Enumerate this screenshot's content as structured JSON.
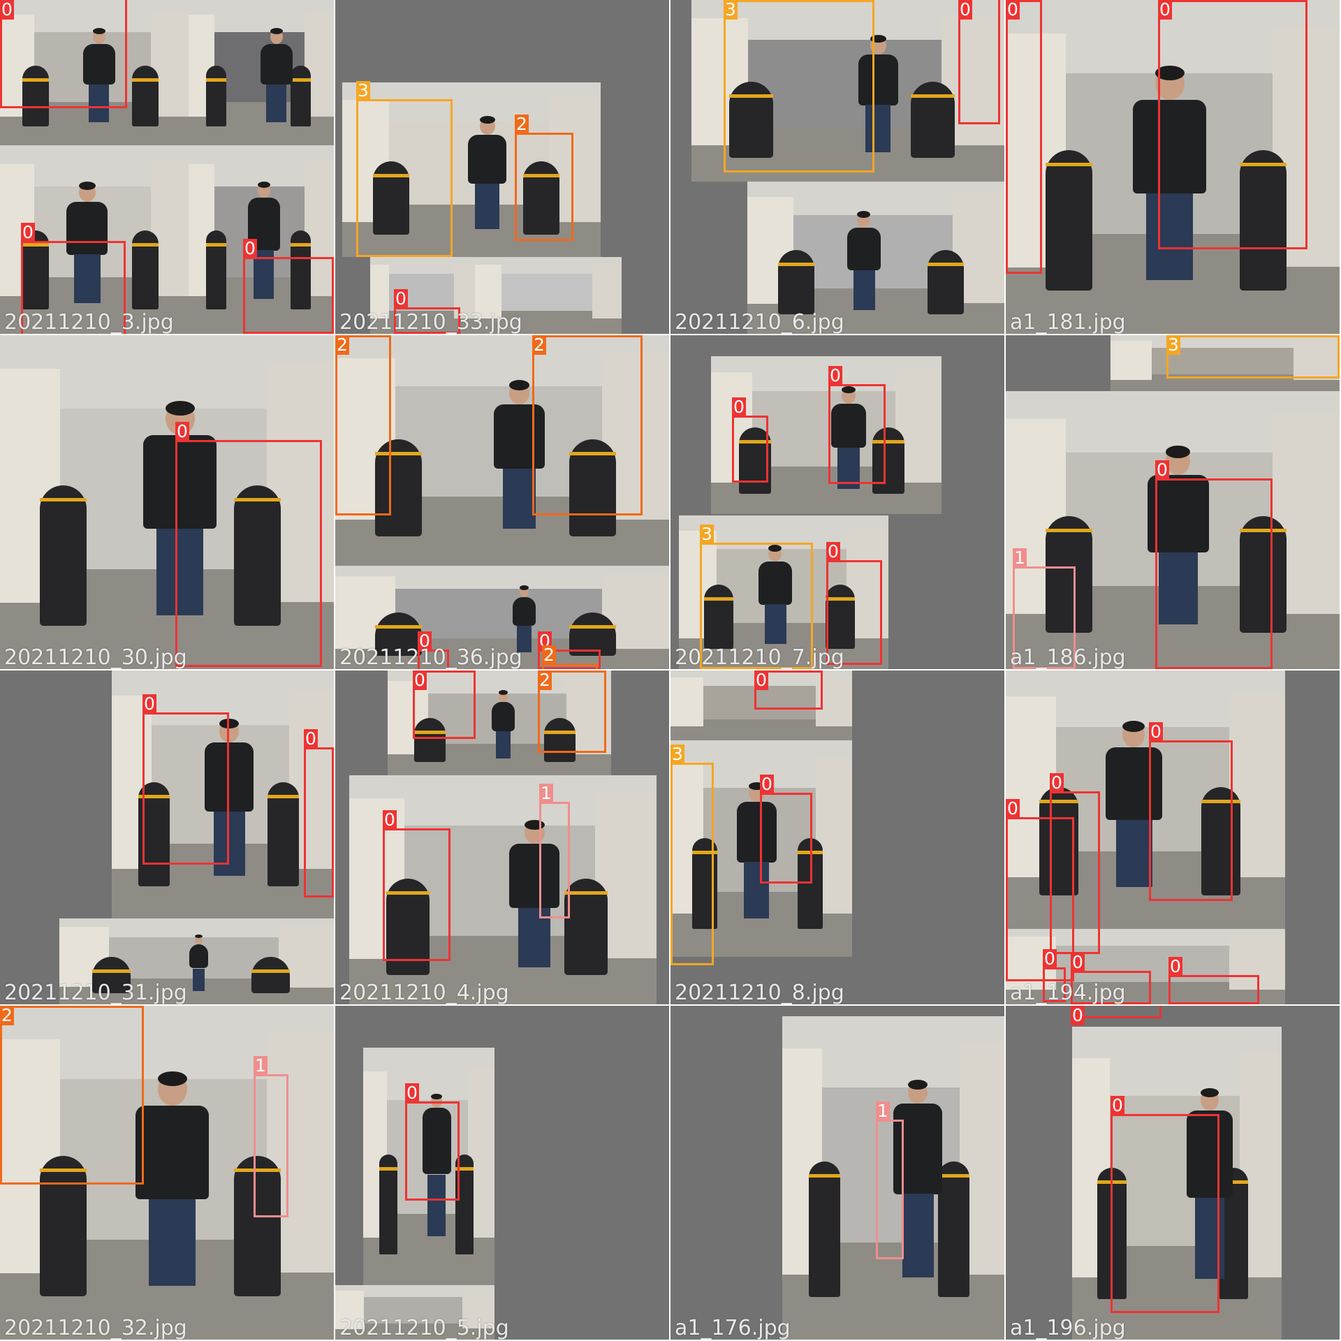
{
  "class_colors": {
    "0": "#ee3333",
    "1": "#f08e8e",
    "2": "#f06a1a",
    "3": "#f5a623"
  },
  "tiles": [
    {
      "filename": "20211210_3.jpg",
      "boxes": [
        {
          "cls": "0"
        },
        {
          "cls": "0"
        },
        {
          "cls": "0"
        }
      ]
    },
    {
      "filename": "20211210_33.jpg",
      "boxes": [
        {
          "cls": "3"
        },
        {
          "cls": "2"
        },
        {
          "cls": "0"
        }
      ]
    },
    {
      "filename": "20211210_6.jpg",
      "boxes": [
        {
          "cls": "3"
        },
        {
          "cls": "0"
        }
      ]
    },
    {
      "filename": "a1_181.jpg",
      "boxes": [
        {
          "cls": "0"
        },
        {
          "cls": "0"
        }
      ]
    },
    {
      "filename": "20211210_30.jpg",
      "boxes": [
        {
          "cls": "0"
        }
      ]
    },
    {
      "filename": "20211210_36.jpg",
      "boxes": [
        {
          "cls": "2"
        },
        {
          "cls": "2"
        },
        {
          "cls": "0"
        },
        {
          "cls": "0"
        },
        {
          "cls": "2"
        }
      ]
    },
    {
      "filename": "20211210_7.jpg",
      "boxes": [
        {
          "cls": "0"
        },
        {
          "cls": "0"
        },
        {
          "cls": "3"
        },
        {
          "cls": "0"
        }
      ]
    },
    {
      "filename": "a1_186.jpg",
      "boxes": [
        {
          "cls": "3"
        },
        {
          "cls": "0"
        },
        {
          "cls": "1"
        }
      ]
    },
    {
      "filename": "20211210_31.jpg",
      "boxes": [
        {
          "cls": "0"
        },
        {
          "cls": "0"
        }
      ]
    },
    {
      "filename": "20211210_4.jpg",
      "boxes": [
        {
          "cls": "0"
        },
        {
          "cls": "2"
        },
        {
          "cls": "0"
        },
        {
          "cls": "1"
        }
      ]
    },
    {
      "filename": "20211210_8.jpg",
      "boxes": [
        {
          "cls": "0"
        },
        {
          "cls": "3"
        },
        {
          "cls": "0"
        }
      ]
    },
    {
      "filename": "a1_194.jpg",
      "boxes": [
        {
          "cls": "0"
        },
        {
          "cls": "0"
        },
        {
          "cls": "0"
        },
        {
          "cls": "0"
        },
        {
          "cls": "0"
        },
        {
          "cls": "0"
        }
      ]
    },
    {
      "filename": "20211210_32.jpg",
      "boxes": [
        {
          "cls": "2"
        },
        {
          "cls": "1"
        }
      ]
    },
    {
      "filename": "20211210_5.jpg",
      "boxes": [
        {
          "cls": "0"
        }
      ]
    },
    {
      "filename": "a1_176.jpg",
      "boxes": [
        {
          "cls": "1"
        }
      ]
    },
    {
      "filename": "a1_196.jpg",
      "boxes": [
        {
          "cls": "0"
        },
        {
          "cls": "0"
        }
      ]
    }
  ]
}
